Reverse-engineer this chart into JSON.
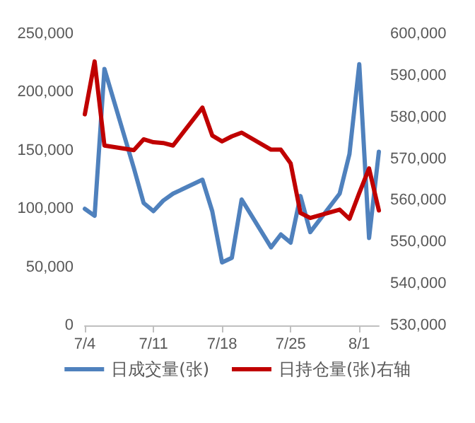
{
  "chart_data": {
    "type": "line",
    "x": [
      "--07-04",
      "--07-05",
      "--07-06",
      "--07-09",
      "--07-10",
      "--07-11",
      "--07-12",
      "--07-13",
      "--07-16",
      "--07-17",
      "--07-18",
      "--07-19",
      "--07-20",
      "--07-23",
      "--07-24",
      "--07-25",
      "--07-26",
      "--07-27",
      "--07-30",
      "--07-31",
      "--08-01",
      "--08-02",
      "--08-03"
    ],
    "series": [
      {
        "name": "日成交量(张)",
        "color": "#4f81bd",
        "values": [
          100000,
          94000,
          220000,
          135000,
          105000,
          98000,
          107000,
          113000,
          125000,
          98000,
          54000,
          58000,
          108000,
          67000,
          78000,
          71000,
          111000,
          80000,
          113000,
          147000,
          224000,
          75000,
          149000
        ]
      },
      {
        "name": "日持仓量(张)右轴",
        "color": "#c00000",
        "axis": "y2",
        "values": [
          580700,
          593400,
          573200,
          572100,
          574700,
          574000,
          573800,
          573200,
          582300,
          575600,
          574200,
          575400,
          576300,
          572200,
          572200,
          568900,
          557000,
          555800,
          557800,
          555600,
          561800,
          567700,
          557600
        ]
      }
    ],
    "xlim": [
      "--07-04",
      "--08-03"
    ],
    "xticks": [
      {
        "value": "--07-04",
        "label": "7/4"
      },
      {
        "value": "--07-11",
        "label": "7/11"
      },
      {
        "value": "--07-18",
        "label": "7/18"
      },
      {
        "value": "--07-25",
        "label": "7/25"
      },
      {
        "value": "--08-01",
        "label": "8/1"
      }
    ],
    "ylim": [
      0,
      250000
    ],
    "yticks": [
      0,
      {
        "value": 50000,
        "label": "50,000"
      },
      {
        "value": 100000,
        "label": "100,000"
      },
      {
        "value": 150000,
        "label": "150,000"
      },
      {
        "value": 200000,
        "label": "200,000"
      },
      {
        "value": 250000,
        "label": "250,000"
      }
    ],
    "y2lim": [
      530000,
      600000
    ],
    "y2ticks": [
      {
        "value": 530000,
        "label": "530,000"
      },
      {
        "value": 540000,
        "label": "540,000"
      },
      {
        "value": 550000,
        "label": "550,000"
      },
      {
        "value": 560000,
        "label": "560,000"
      },
      {
        "value": 570000,
        "label": "570,000"
      },
      {
        "value": 580000,
        "label": "580,000"
      },
      {
        "value": 590000,
        "label": "590,000"
      },
      {
        "value": 600000,
        "label": "600,000"
      }
    ],
    "grid": false,
    "legend": "bottom",
    "marker": "none",
    "line_style": "solid"
  }
}
